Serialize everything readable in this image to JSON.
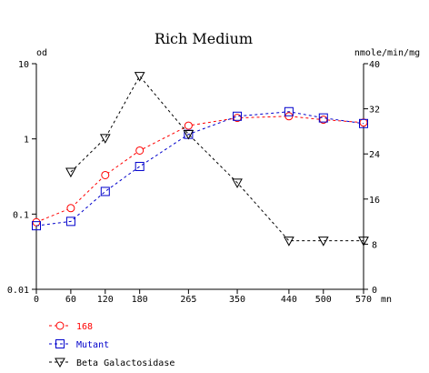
{
  "chart_data": {
    "type": "line",
    "title": "Rich Medium",
    "xlabel": "mn",
    "x_ticks": [
      "0",
      "60",
      "120",
      "180",
      "265",
      "350",
      "440",
      "500",
      "570"
    ],
    "x": [
      0,
      60,
      120,
      180,
      265,
      350,
      440,
      500,
      570
    ],
    "left_axis": {
      "label": "od",
      "scale": "log",
      "ylim": [
        0.01,
        10
      ],
      "ticks": [
        0.01,
        0.1,
        1,
        10
      ],
      "tick_labels": [
        "0.01",
        "0.1",
        "1",
        "10"
      ]
    },
    "right_axis": {
      "label": "nmole/min/mg",
      "scale": "linear",
      "ylim": [
        0,
        40
      ],
      "ticks": [
        0,
        8,
        16,
        24,
        32,
        40
      ],
      "tick_labels": [
        "0",
        "8",
        "16",
        "24",
        "32",
        "40"
      ]
    },
    "grid": false,
    "legend_position": "bottom-left",
    "series": [
      {
        "name": "168",
        "axis": "left",
        "marker": "circle",
        "color": "#ff0000",
        "x": [
          0,
          60,
          120,
          180,
          265,
          350,
          440,
          500,
          570
        ],
        "values": [
          0.078,
          0.12,
          0.33,
          0.7,
          1.5,
          1.9,
          2.0,
          1.8,
          1.65
        ]
      },
      {
        "name": "Mutant",
        "axis": "left",
        "marker": "square",
        "color": "#0000cc",
        "x": [
          0,
          60,
          120,
          180,
          265,
          350,
          440,
          500,
          570
        ],
        "values": [
          0.07,
          0.08,
          0.2,
          0.43,
          1.15,
          2.0,
          2.3,
          1.9,
          1.6
        ]
      },
      {
        "name": "Beta Galactosidase",
        "axis": "right",
        "marker": "triangle-down",
        "color": "#000000",
        "x": [
          60,
          120,
          180,
          265,
          350,
          440,
          500,
          570
        ],
        "values": [
          20.8,
          26.8,
          37.8,
          27.5,
          18.9,
          8.6,
          8.6,
          8.6
        ]
      }
    ]
  }
}
